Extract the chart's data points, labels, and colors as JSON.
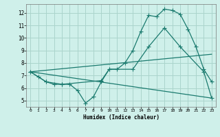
{
  "background_color": "#cff0ea",
  "grid_color": "#aad4cc",
  "line_color": "#1a7a6e",
  "xlabel": "Humidex (Indice chaleur)",
  "xlim": [
    -0.5,
    23.5
  ],
  "ylim": [
    4.5,
    12.7
  ],
  "yticks": [
    5,
    6,
    7,
    8,
    9,
    10,
    11,
    12
  ],
  "xticks": [
    0,
    1,
    2,
    3,
    4,
    5,
    6,
    7,
    8,
    9,
    10,
    11,
    12,
    13,
    14,
    15,
    16,
    17,
    18,
    19,
    20,
    21,
    22,
    23
  ],
  "line1_x": [
    0,
    1,
    2,
    3,
    4,
    5,
    6,
    7,
    8,
    9,
    10,
    11,
    12,
    13,
    14,
    15,
    16,
    17,
    18,
    19,
    20,
    21,
    22,
    23
  ],
  "line1_y": [
    7.3,
    6.9,
    6.5,
    6.3,
    6.3,
    6.3,
    5.8,
    4.8,
    5.3,
    6.5,
    7.5,
    7.5,
    8.0,
    9.0,
    10.5,
    11.8,
    11.7,
    12.3,
    12.2,
    11.9,
    10.7,
    9.3,
    7.5,
    6.5
  ],
  "line2_x": [
    0,
    2,
    4,
    9,
    10,
    13,
    15,
    17,
    19,
    22,
    23
  ],
  "line2_y": [
    7.3,
    6.5,
    6.3,
    6.6,
    7.5,
    7.5,
    9.3,
    10.8,
    9.3,
    7.3,
    5.2
  ],
  "line3_x": [
    0,
    23
  ],
  "line3_y": [
    7.3,
    5.2
  ],
  "line4_x": [
    0,
    23
  ],
  "line4_y": [
    7.3,
    8.7
  ]
}
